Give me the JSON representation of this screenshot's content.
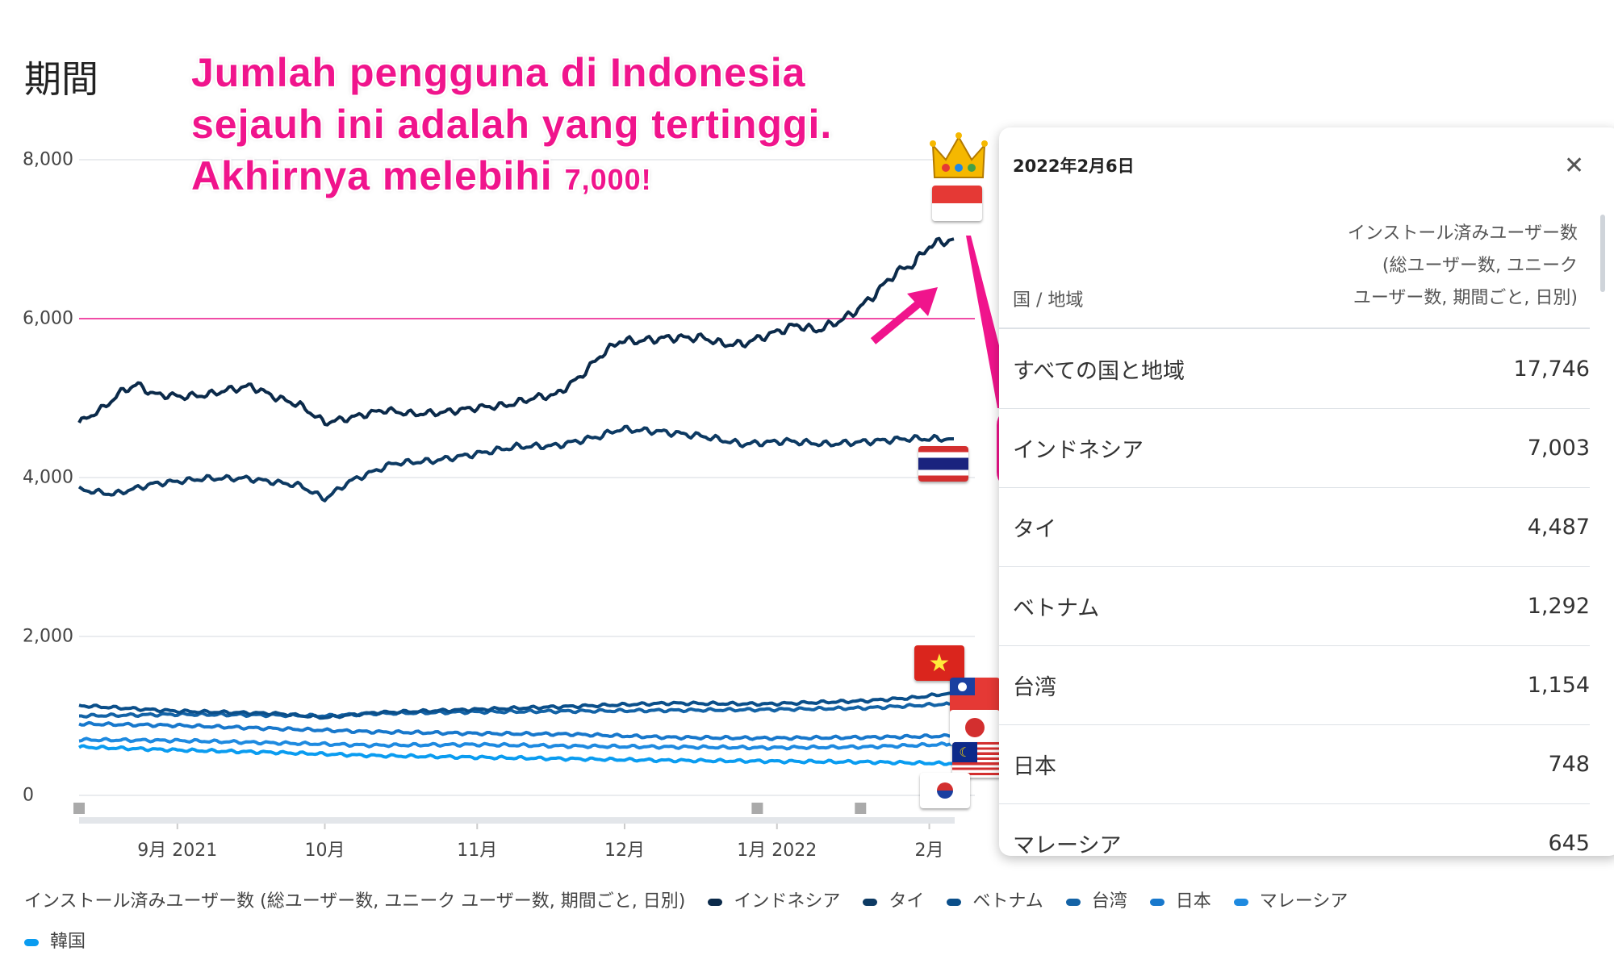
{
  "title": "期間",
  "annotation": {
    "line1": "Jumlah pengguna di Indonesia",
    "line2": "sejauh ini adalah yang tertinggi.",
    "line3": "Akhirnya melebihi ",
    "line3_small": "7,000!",
    "color": "#f0148c"
  },
  "chart_data": {
    "type": "line",
    "title": "期間",
    "ylabel": "インストール済みユーザー数 (総ユーザー数, ユニーク ユーザー数, 期間ごと, 日別)",
    "ylim": [
      0,
      8000
    ],
    "yticks": [
      "0",
      "2,000",
      "4,000",
      "6,000",
      "8,000"
    ],
    "ytick_values": [
      0,
      2000,
      4000,
      6000,
      8000
    ],
    "x_unit": "days since 2021-08-12",
    "xlim": [
      0,
      178
    ],
    "xticks": [
      {
        "label": "9月 2021",
        "day": 20
      },
      {
        "label": "10月",
        "day": 50
      },
      {
        "label": "11月",
        "day": 81
      },
      {
        "label": "12月",
        "day": 111
      },
      {
        "label": "1月 2022",
        "day": 142
      },
      {
        "label": "2月",
        "day": 173
      }
    ],
    "reference_line": 6000,
    "series": [
      {
        "name": "インドネシア",
        "color": "#0b2a4a",
        "x": [
          0,
          5,
          9,
          12,
          15,
          21,
          26,
          30,
          35,
          40,
          45,
          50,
          55,
          62,
          68,
          74,
          81,
          87,
          93,
          97,
          102,
          106,
          110,
          114,
          120,
          127,
          131,
          135,
          140,
          146,
          150,
          154,
          157,
          161,
          166,
          170,
          173,
          178
        ],
        "y": [
          4690,
          4880,
          5100,
          5170,
          5050,
          5020,
          5040,
          5100,
          5150,
          5010,
          4910,
          4690,
          4750,
          4850,
          4800,
          4820,
          4880,
          4910,
          5010,
          5040,
          5270,
          5530,
          5720,
          5720,
          5760,
          5760,
          5680,
          5680,
          5790,
          5920,
          5850,
          5950,
          6050,
          6250,
          6570,
          6700,
          6920,
          7003
        ]
      },
      {
        "name": "タイ",
        "color": "#0d3a63",
        "x": [
          0,
          7,
          15,
          26,
          34,
          45,
          50,
          55,
          64,
          72,
          81,
          89,
          97,
          106,
          110,
          118,
          127,
          135,
          144,
          152,
          160,
          169,
          178
        ],
        "y": [
          3850,
          3790,
          3920,
          3990,
          3990,
          3900,
          3730,
          3950,
          4180,
          4210,
          4300,
          4390,
          4400,
          4520,
          4610,
          4580,
          4520,
          4420,
          4460,
          4420,
          4450,
          4490,
          4487
        ]
      },
      {
        "name": "ベトナム",
        "color": "#0b4f8a",
        "x": [
          0,
          20,
          40,
          50,
          60,
          80,
          100,
          120,
          140,
          160,
          170,
          178
        ],
        "y": [
          1130,
          1060,
          1030,
          980,
          1040,
          1080,
          1120,
          1160,
          1150,
          1190,
          1230,
          1292
        ]
      },
      {
        "name": "台湾",
        "color": "#1463a6",
        "x": [
          0,
          20,
          40,
          50,
          60,
          80,
          100,
          120,
          140,
          160,
          170,
          178
        ],
        "y": [
          1000,
          1020,
          1010,
          1000,
          1030,
          1050,
          1060,
          1070,
          1080,
          1100,
          1130,
          1154
        ]
      },
      {
        "name": "日本",
        "color": "#1878cc",
        "x": [
          0,
          20,
          40,
          60,
          80,
          100,
          120,
          140,
          160,
          178
        ],
        "y": [
          900,
          880,
          840,
          800,
          780,
          770,
          730,
          720,
          730,
          748
        ]
      },
      {
        "name": "マレーシア",
        "color": "#1e8ae0",
        "x": [
          0,
          20,
          40,
          60,
          80,
          100,
          120,
          140,
          160,
          178
        ],
        "y": [
          700,
          690,
          660,
          630,
          640,
          620,
          610,
          600,
          610,
          645
        ]
      },
      {
        "name": "韓国",
        "color": "#0a9cf0",
        "x": [
          0,
          20,
          40,
          60,
          80,
          100,
          120,
          140,
          160,
          178
        ],
        "y": [
          610,
          570,
          540,
          500,
          480,
          460,
          440,
          430,
          420,
          400
        ]
      }
    ]
  },
  "panel": {
    "date": "2022年2月6日",
    "close_icon": "close-icon",
    "col_left": "国 / 地域",
    "col_right_lines": [
      "インストール済みユーザー数",
      "(総ユーザー数, ユニーク",
      "ユーザー数, 期間ごと, 日別)"
    ],
    "rows": [
      {
        "label": "すべての国と地域",
        "value": "17,746"
      },
      {
        "label": "インドネシア",
        "value": "7,003"
      },
      {
        "label": "タイ",
        "value": "4,487"
      },
      {
        "label": "ベトナム",
        "value": "1,292"
      },
      {
        "label": "台湾",
        "value": "1,154"
      },
      {
        "label": "日本",
        "value": "748"
      },
      {
        "label": "マレーシア",
        "value": "645"
      }
    ],
    "highlight_color": "#f0148c"
  },
  "legend": {
    "title": "インストール済みユーザー数 (総ユーザー数, ユニーク ユーザー数, 期間ごと, 日別)"
  }
}
